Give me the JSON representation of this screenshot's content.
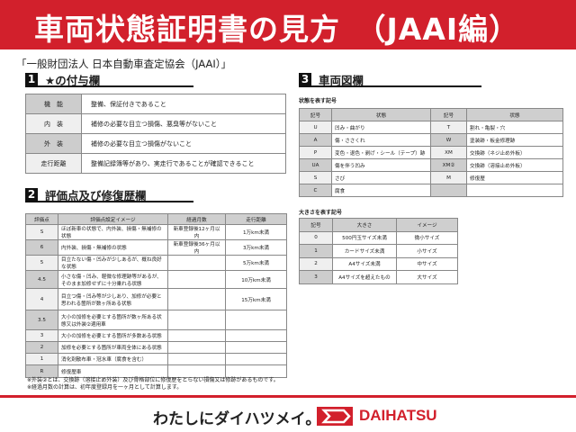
{
  "header": {
    "title": "車両状態証明書の見方　（JAAI編）"
  },
  "subtitle": "「一般財団法人 日本自動車査定協会（JAAI）」",
  "section1": {
    "num": "1",
    "title": "★の付与欄",
    "rows": [
      {
        "k": "機　能",
        "v": "整備、保証付きであること"
      },
      {
        "k": "内　装",
        "v": "補修の必要な目立つ損傷、悪臭等がないこと"
      },
      {
        "k": "外　装",
        "v": "補修の必要な目立つ損傷がないこと"
      },
      {
        "k": "走行距離",
        "v": "整備記録簿等があり、実走行であることが確認できること"
      }
    ]
  },
  "section2": {
    "num": "2",
    "title": "評価点及び修復歴欄",
    "headers": [
      "評価点",
      "評価点設定イメージ",
      "経過月数",
      "走行距離"
    ],
    "rows": [
      [
        "S",
        "ほぼ新車の状態で、内外装、損傷・無補修の状態",
        "新車登録後12ヶ月以内",
        "1万km未満"
      ],
      [
        "6",
        "内外装、損傷・無補修の状態",
        "新車登録後36ヶ月以内",
        "3万km未満"
      ],
      [
        "5",
        "目立たない傷・凹みが少しあるが、概ね良好な状態",
        "",
        "5万km未満"
      ],
      [
        "4.5",
        "小さな傷・凹み、軽微な修理跡等があるが、そのまま加修せずに十分乗れる状態",
        "",
        "10万km未満"
      ],
      [
        "4",
        "目立つ傷・凹み等が少しあり、加修が必要と思われる箇所が数ヶ所ある状態",
        "",
        "15万km未満"
      ],
      [
        "3.5",
        "大小の加修を必要とする箇所が数ヶ所ある状態又は外装②適用車",
        "",
        ""
      ],
      [
        "3",
        "大小の加修を必要とする箇所が多数ある状態",
        "",
        ""
      ],
      [
        "2",
        "加修を必要とする箇所が車両全体にある状態",
        "",
        ""
      ],
      [
        "1",
        "消化剤散布車・冠水車（腐食を含む）",
        "",
        ""
      ],
      [
        "R",
        "修復歴車",
        "",
        ""
      ]
    ]
  },
  "section3": {
    "num": "3",
    "title": "車両図欄",
    "state_caption": "状態を表す記号",
    "state_headers": [
      "記号",
      "状態",
      "記号",
      "状態"
    ],
    "state_rows": [
      [
        "U",
        "凹み・曲がり",
        "T",
        "割れ・亀裂・穴"
      ],
      [
        "A",
        "傷・ささくれ",
        "W",
        "塗装跡・板金修理跡"
      ],
      [
        "P",
        "変色・退色・剥げ・シール（テープ）跡",
        "XM",
        "交換跡（ネジ止め外板）"
      ],
      [
        "UA",
        "傷を伴う凹み",
        "XM②",
        "交換跡（溶接止め外板）"
      ],
      [
        "S",
        "さび",
        "M",
        "修復歴"
      ],
      [
        "C",
        "腐食",
        "",
        ""
      ]
    ],
    "size_caption": "大きさを表す記号",
    "size_headers": [
      "記号",
      "大きさ",
      "イメージ"
    ],
    "size_rows": [
      [
        "0",
        "500円玉サイズ未満",
        "微小サイズ"
      ],
      [
        "1",
        "カードサイズ未満",
        "小サイズ"
      ],
      [
        "2",
        "A4サイズ未満",
        "中サイズ"
      ],
      [
        "3",
        "A4サイズを超えたもの",
        "大サイズ"
      ]
    ]
  },
  "notes": [
    "※外装②とは、交換跡（溶接止め外装）及び骨格部位に修復歴をとらない損傷又は修跡があるものです。",
    "※経過月数の計算は、初年度登録月を一ヶ月として計算します。"
  ],
  "footer": {
    "slogan": "わたしにダイハツメイ。",
    "brand": "DAIHATSU",
    "brand_color": "#d2202c"
  }
}
